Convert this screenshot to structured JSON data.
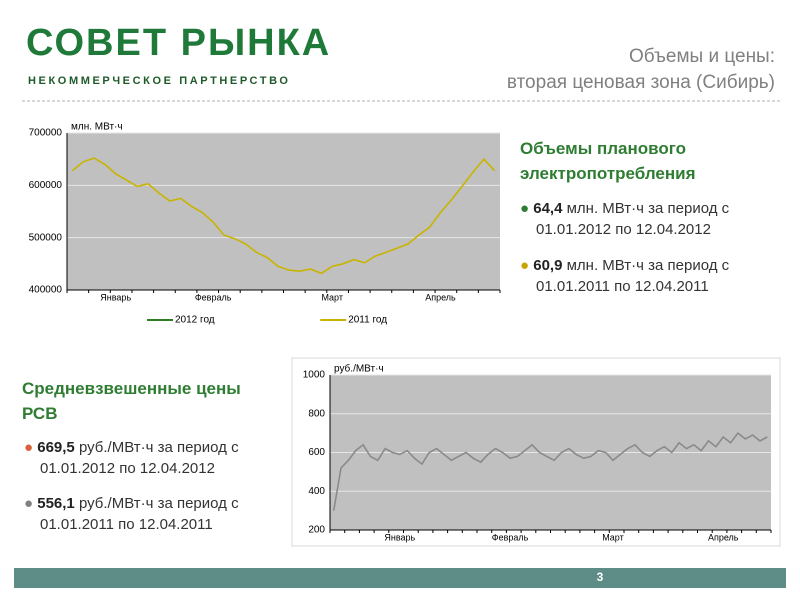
{
  "logo": {
    "name": "СОВЕТ РЫНКА",
    "subtitle": "НЕКОММЕРЧЕСКОЕ ПАРТНЕРСТВО"
  },
  "header": {
    "title": [
      "Объемы и цены:",
      "вторая ценовая зона (Сибирь)"
    ]
  },
  "sections": [
    {
      "title": "Объемы планового электропотребления",
      "bullets": [
        {
          "value": "64,4",
          "text": " млн. МВт·ч за период с 01.01.2012 по 12.04.2012",
          "color": "#2e7d32"
        },
        {
          "value": "60,9",
          "text": " млн. МВт·ч за период с 01.01.2011 по 12.04.2011",
          "color": "#c9a400"
        }
      ]
    },
    {
      "title": "Средневзвешенные цены РСВ",
      "bullets": [
        {
          "value": "669,5",
          "text": " руб./МВт·ч за период с 01.01.2012 по 12.04.2012",
          "color": "#d9603b"
        },
        {
          "value": "556,1",
          "text": " руб./МВт·ч за период с 01.01.2011 по 12.04.2011",
          "color": "#808080"
        }
      ]
    }
  ],
  "page_number": "3",
  "chart_data": [
    {
      "type": "line",
      "ylabel": "млн. МВт·ч",
      "categories": [
        null,
        null,
        null,
        null,
        "Январь",
        null,
        null,
        null,
        null,
        null,
        null,
        null,
        null,
        "Февраль",
        null,
        null,
        null,
        null,
        null,
        null,
        null,
        null,
        null,
        null,
        "Март",
        null,
        null,
        null,
        null,
        null,
        null,
        null,
        null,
        null,
        "Апрель",
        null,
        null,
        null,
        null,
        null
      ],
      "series": [
        {
          "name": "2012 год",
          "color": "#2e7d1e",
          "values": [
            null,
            null,
            null,
            null,
            null,
            null,
            null,
            null,
            null,
            null,
            null,
            null,
            null,
            null,
            null,
            null,
            null,
            null,
            null,
            null,
            null,
            null,
            null,
            null,
            null,
            null,
            null,
            null,
            null,
            null,
            null,
            null,
            null,
            null,
            null,
            null,
            null,
            null,
            null,
            null
          ]
        },
        {
          "name": "2011 год",
          "color": "#c8b400",
          "values": [
            628000,
            645000,
            652000,
            640000,
            622000,
            610000,
            598000,
            603000,
            585000,
            570000,
            575000,
            560000,
            548000,
            530000,
            505000,
            498000,
            488000,
            472000,
            462000,
            445000,
            438000,
            436000,
            440000,
            432000,
            445000,
            450000,
            458000,
            452000,
            465000,
            472000,
            480000,
            488000,
            505000,
            520000,
            548000,
            572000,
            598000,
            625000,
            650000,
            628000
          ]
        }
      ],
      "ylim": [
        400000,
        700000
      ],
      "yticks": [
        400000,
        500000,
        600000,
        700000
      ],
      "grid": true,
      "legend": "bottom"
    },
    {
      "type": "line",
      "ylabel": "руб./МВт·ч",
      "categories": [
        null,
        null,
        null,
        null,
        null,
        null,
        null,
        null,
        null,
        "Январь",
        null,
        null,
        null,
        null,
        null,
        null,
        null,
        null,
        null,
        null,
        null,
        null,
        null,
        null,
        "Февраль",
        null,
        null,
        null,
        null,
        null,
        null,
        null,
        null,
        null,
        null,
        null,
        null,
        null,
        "Март",
        null,
        null,
        null,
        null,
        null,
        null,
        null,
        null,
        null,
        null,
        null,
        null,
        null,
        null,
        "Апрель",
        null,
        null,
        null,
        null,
        null,
        null
      ],
      "values": [
        300,
        520,
        560,
        610,
        640,
        580,
        560,
        620,
        600,
        590,
        610,
        570,
        540,
        600,
        620,
        590,
        560,
        580,
        600,
        570,
        550,
        590,
        620,
        600,
        570,
        580,
        610,
        640,
        600,
        580,
        560,
        600,
        620,
        590,
        570,
        580,
        610,
        600,
        560,
        590,
        620,
        640,
        600,
        580,
        610,
        630,
        600,
        650,
        620,
        640,
        610,
        660,
        630,
        680,
        650,
        700,
        670,
        690,
        660,
        680
      ],
      "color": "#8a8a8a",
      "ylim": [
        200,
        1000
      ],
      "yticks": [
        200,
        400,
        600,
        800,
        1000
      ],
      "grid": true
    }
  ]
}
